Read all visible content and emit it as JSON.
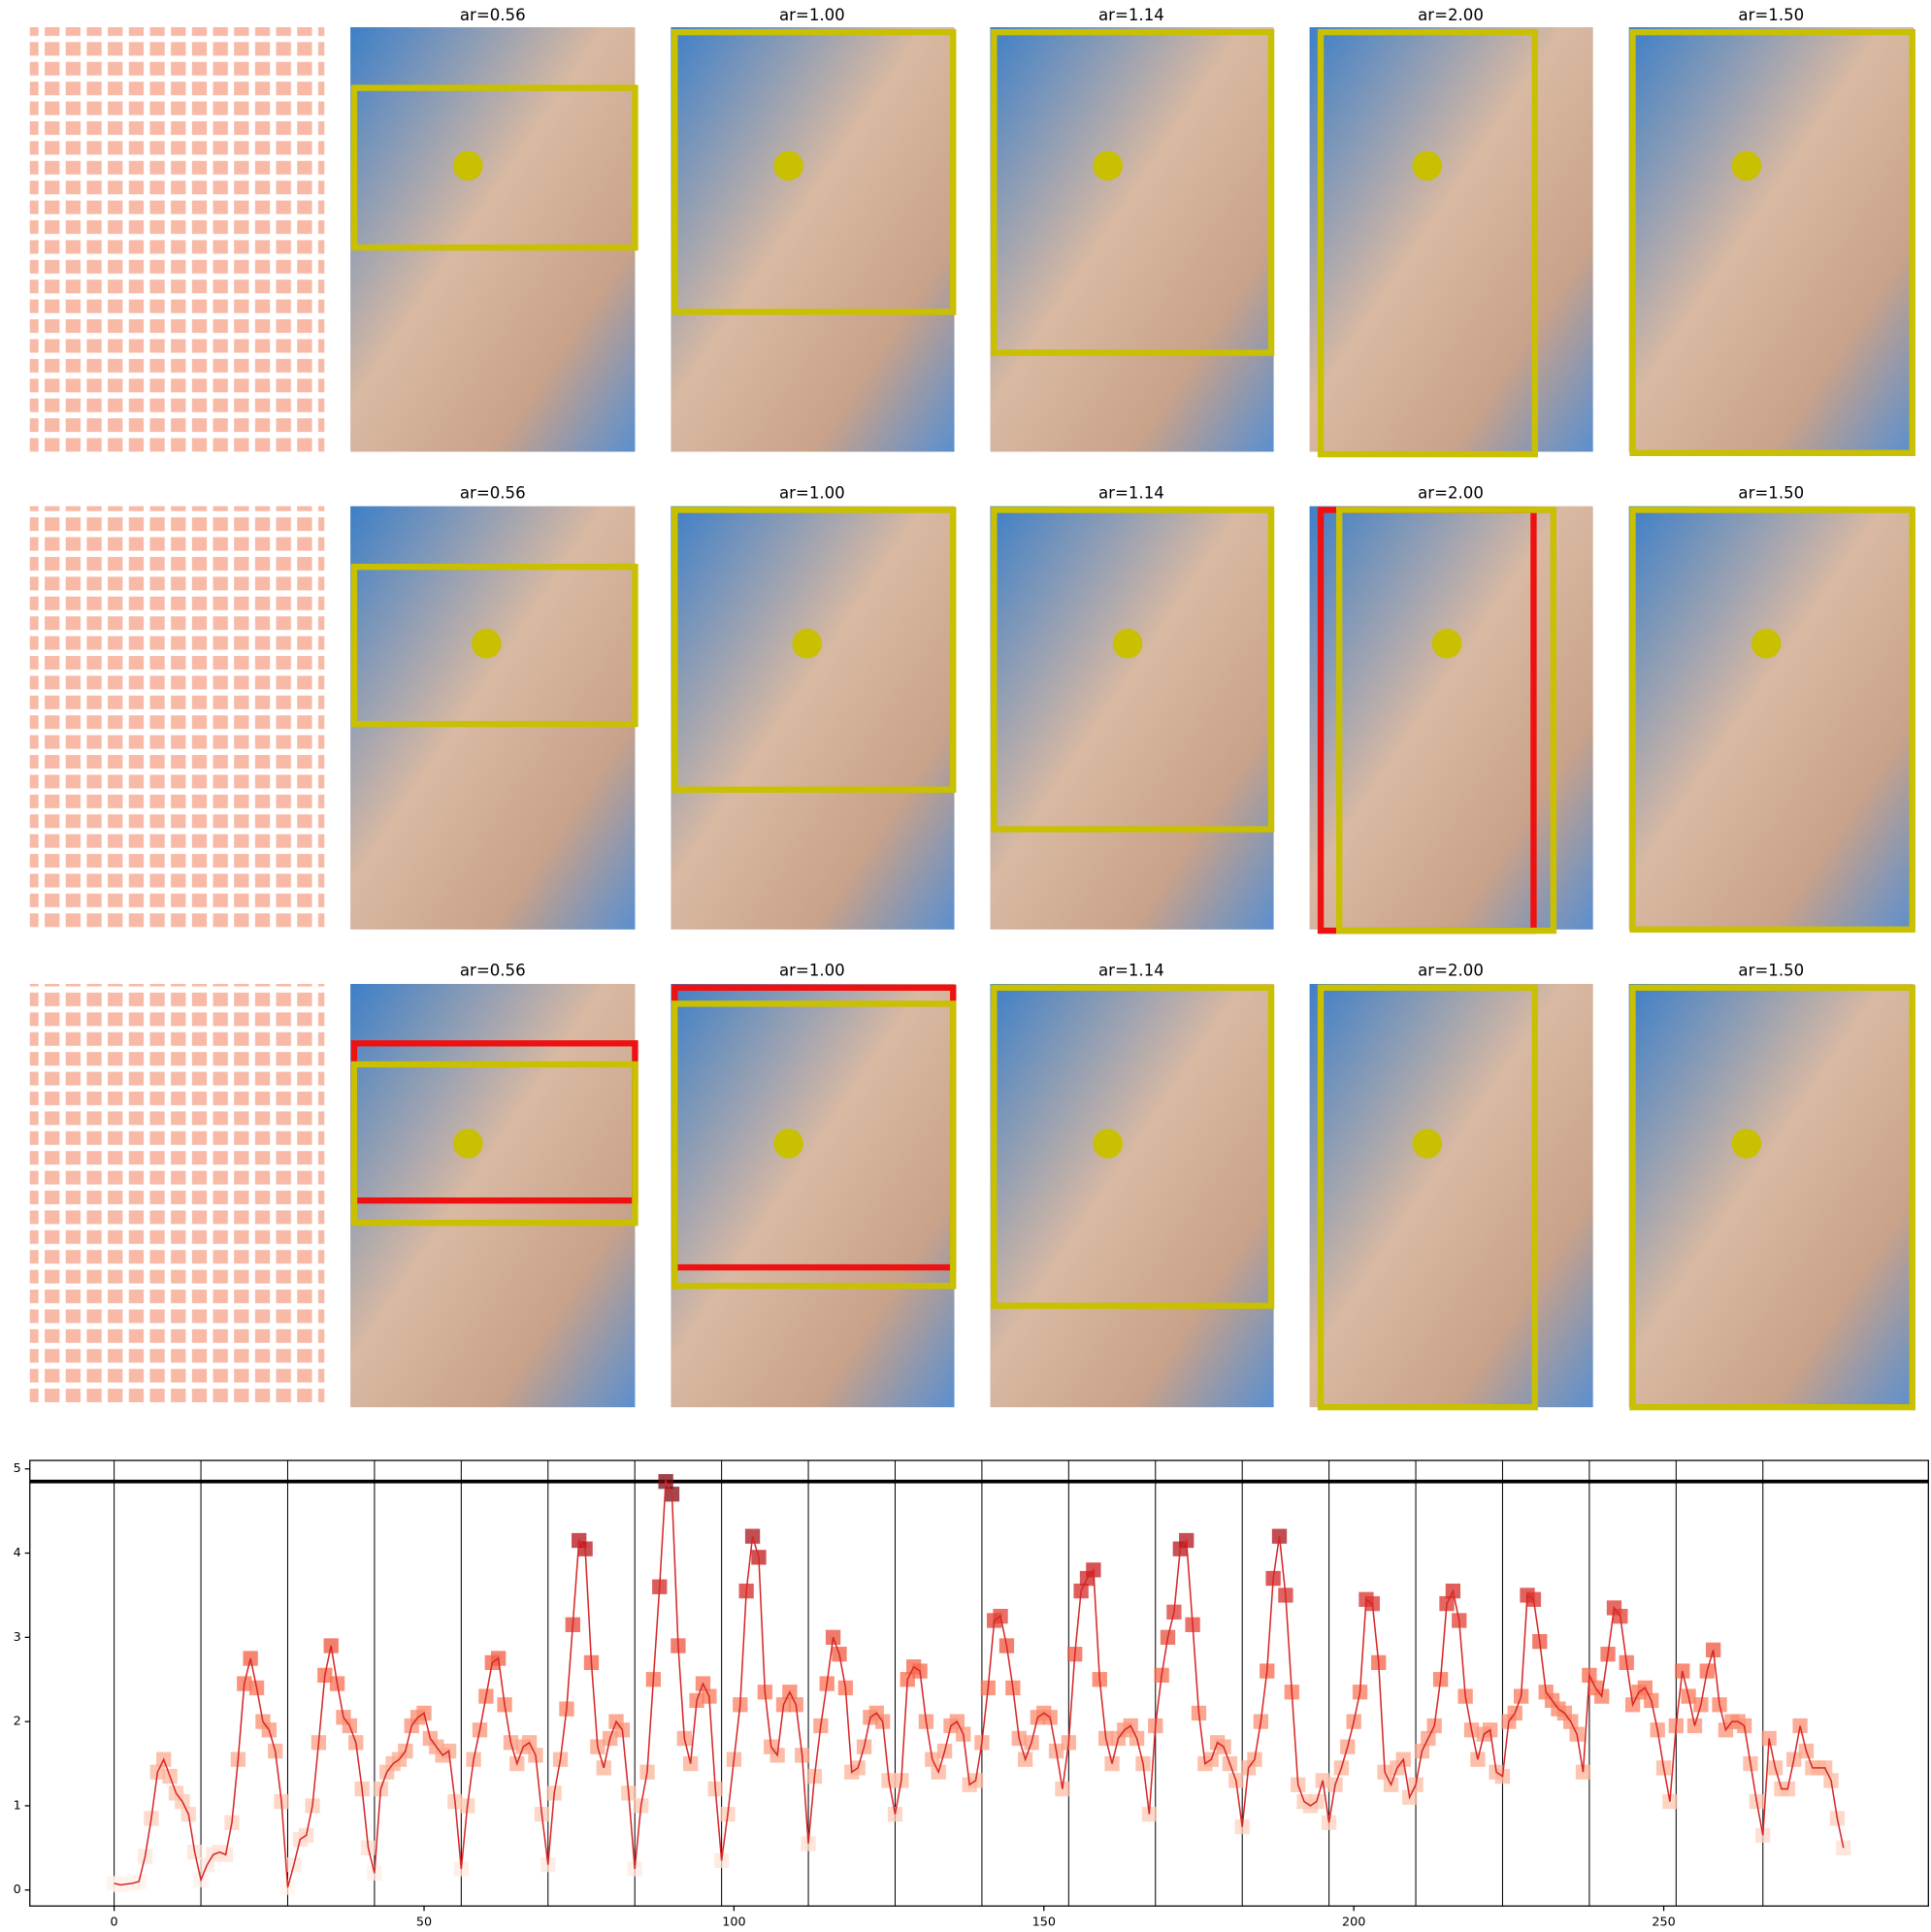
{
  "panels": {
    "rows": [
      {
        "titles": [
          "ar=0.56",
          "ar=1.00",
          "ar=1.14",
          "ar=2.00",
          "ar=1.50"
        ]
      },
      {
        "titles": [
          "ar=0.56",
          "ar=1.00",
          "ar=1.14",
          "ar=2.00",
          "ar=1.50"
        ]
      },
      {
        "titles": [
          "ar=0.56",
          "ar=1.00",
          "ar=1.14",
          "ar=2.00",
          "ar=1.50"
        ]
      }
    ]
  },
  "chart_data": {
    "type": "line",
    "x": [
      0,
      1,
      2,
      3,
      4,
      5,
      6,
      7,
      8,
      9,
      10,
      11,
      12,
      13,
      14,
      15,
      16,
      17,
      18,
      19,
      20,
      21,
      22,
      23,
      24,
      25,
      26,
      27,
      28,
      29,
      30,
      31,
      32,
      33,
      34,
      35,
      36,
      37,
      38,
      39,
      40,
      41,
      42,
      43,
      44,
      45,
      46,
      47,
      48,
      49,
      50,
      51,
      52,
      53,
      54,
      55,
      56,
      57,
      58,
      59,
      60,
      61,
      62,
      63,
      64,
      65,
      66,
      67,
      68,
      69,
      70,
      71,
      72,
      73,
      74,
      75,
      76,
      77,
      78,
      79,
      80,
      81,
      82,
      83,
      84,
      85,
      86,
      87,
      88,
      89,
      90,
      91,
      92,
      93,
      94,
      95,
      96,
      97,
      98,
      99,
      100,
      101,
      102,
      103,
      104,
      105,
      106,
      107,
      108,
      109,
      110,
      111,
      112,
      113,
      114,
      115,
      116,
      117,
      118,
      119,
      120,
      121,
      122,
      123,
      124,
      125,
      126,
      127,
      128,
      129,
      130,
      131,
      132,
      133,
      134,
      135,
      136,
      137,
      138,
      139,
      140,
      141,
      142,
      143,
      144,
      145,
      146,
      147,
      148,
      149,
      150,
      151,
      152,
      153,
      154,
      155,
      156,
      157,
      158,
      159,
      160,
      161,
      162,
      163,
      164,
      165,
      166,
      167,
      168,
      169,
      170,
      171,
      172,
      173,
      174,
      175,
      176,
      177,
      178,
      179,
      180,
      181,
      182,
      183,
      184,
      185,
      186,
      187,
      188,
      189,
      190,
      191,
      192,
      193,
      194,
      195,
      196,
      197,
      198,
      199,
      200,
      201,
      202,
      203,
      204,
      205,
      206,
      207,
      208,
      209,
      210,
      211,
      212,
      213,
      214,
      215,
      216,
      217,
      218,
      219,
      220,
      221,
      222,
      223,
      224,
      225,
      226,
      227,
      228,
      229,
      230,
      231,
      232,
      233,
      234,
      235,
      236,
      237,
      238,
      239,
      240,
      241,
      242,
      243,
      244,
      245,
      246,
      247,
      248,
      249,
      250,
      251,
      252,
      253,
      254,
      255,
      256,
      257,
      258,
      259,
      260,
      261,
      262,
      263,
      264,
      265,
      266,
      267,
      268,
      269,
      270,
      271,
      272,
      273,
      274,
      275,
      276,
      277,
      278,
      279
    ],
    "series": [
      {
        "color": "#d62728",
        "values": [
          0.08,
          0.06,
          0.07,
          0.08,
          0.1,
          0.4,
          0.85,
          1.4,
          1.55,
          1.35,
          1.15,
          1.05,
          0.9,
          0.45,
          0.12,
          0.3,
          0.42,
          0.45,
          0.42,
          0.8,
          1.55,
          2.45,
          2.75,
          2.4,
          2.0,
          1.9,
          1.65,
          1.05,
          0.03,
          0.3,
          0.6,
          0.65,
          1.0,
          1.75,
          2.55,
          2.9,
          2.45,
          2.05,
          1.95,
          1.75,
          1.2,
          0.5,
          0.2,
          1.2,
          1.4,
          1.5,
          1.55,
          1.65,
          1.95,
          2.05,
          2.1,
          1.8,
          1.7,
          1.6,
          1.65,
          1.05,
          0.25,
          1.0,
          1.55,
          1.9,
          2.3,
          2.7,
          2.75,
          2.2,
          1.75,
          1.5,
          1.7,
          1.75,
          1.6,
          0.9,
          0.3,
          1.15,
          1.55,
          2.15,
          3.15,
          4.15,
          4.05,
          2.7,
          1.7,
          1.45,
          1.8,
          2.0,
          1.9,
          1.15,
          0.25,
          1.0,
          1.4,
          2.5,
          3.6,
          4.85,
          4.7,
          2.9,
          1.8,
          1.5,
          2.25,
          2.45,
          2.3,
          1.2,
          0.35,
          0.9,
          1.55,
          2.2,
          3.55,
          4.2,
          3.95,
          2.35,
          1.7,
          1.6,
          2.2,
          2.35,
          2.2,
          1.6,
          0.55,
          1.35,
          1.95,
          2.45,
          3.0,
          2.8,
          2.4,
          1.4,
          1.45,
          1.7,
          2.05,
          2.1,
          2.0,
          1.3,
          0.9,
          1.3,
          2.5,
          2.65,
          2.6,
          2.0,
          1.55,
          1.4,
          1.65,
          1.95,
          2.0,
          1.85,
          1.25,
          1.3,
          1.75,
          2.4,
          3.2,
          3.25,
          2.9,
          2.4,
          1.8,
          1.55,
          1.75,
          2.05,
          2.1,
          2.05,
          1.65,
          1.2,
          1.75,
          2.8,
          3.55,
          3.7,
          3.8,
          2.5,
          1.8,
          1.5,
          1.8,
          1.9,
          1.95,
          1.8,
          1.5,
          0.9,
          1.95,
          2.55,
          3.0,
          3.3,
          4.05,
          4.15,
          3.15,
          2.1,
          1.5,
          1.55,
          1.75,
          1.7,
          1.5,
          1.3,
          0.75,
          1.45,
          1.55,
          2.0,
          2.6,
          3.7,
          4.2,
          3.5,
          2.35,
          1.25,
          1.05,
          1.0,
          1.05,
          1.3,
          0.8,
          1.25,
          1.45,
          1.7,
          2.0,
          2.35,
          3.45,
          3.4,
          2.7,
          1.4,
          1.25,
          1.45,
          1.55,
          1.1,
          1.25,
          1.65,
          1.8,
          1.95,
          2.5,
          3.4,
          3.55,
          3.2,
          2.3,
          1.9,
          1.55,
          1.85,
          1.9,
          1.4,
          1.35,
          2.0,
          2.1,
          2.3,
          3.5,
          3.45,
          2.95,
          2.35,
          2.25,
          2.15,
          2.1,
          2.0,
          1.85,
          1.4,
          2.55,
          2.4,
          2.3,
          2.8,
          3.35,
          3.25,
          2.7,
          2.2,
          2.35,
          2.4,
          2.25,
          1.9,
          1.45,
          1.05,
          1.95,
          2.6,
          2.3,
          1.95,
          2.2,
          2.6,
          2.85,
          2.2,
          1.9,
          2.0,
          2.0,
          1.95,
          1.5,
          1.05,
          0.65,
          1.8,
          1.45,
          1.2,
          1.2,
          1.55,
          1.95,
          1.65,
          1.45,
          1.45,
          1.45,
          1.3,
          0.85,
          0.5
        ]
      }
    ],
    "hline": 4.85,
    "vlines": [
      0,
      14,
      28,
      42,
      56,
      70,
      84,
      98,
      112,
      126,
      140,
      154,
      168,
      182,
      196,
      210,
      224,
      238,
      252,
      266
    ],
    "xlim": [
      -13.6,
      292.7
    ],
    "ylim": [
      -0.19,
      5.1
    ],
    "xticks": [
      0,
      50,
      100,
      150,
      200,
      250
    ],
    "yticks": [
      0,
      1,
      2,
      3,
      4,
      5
    ]
  }
}
